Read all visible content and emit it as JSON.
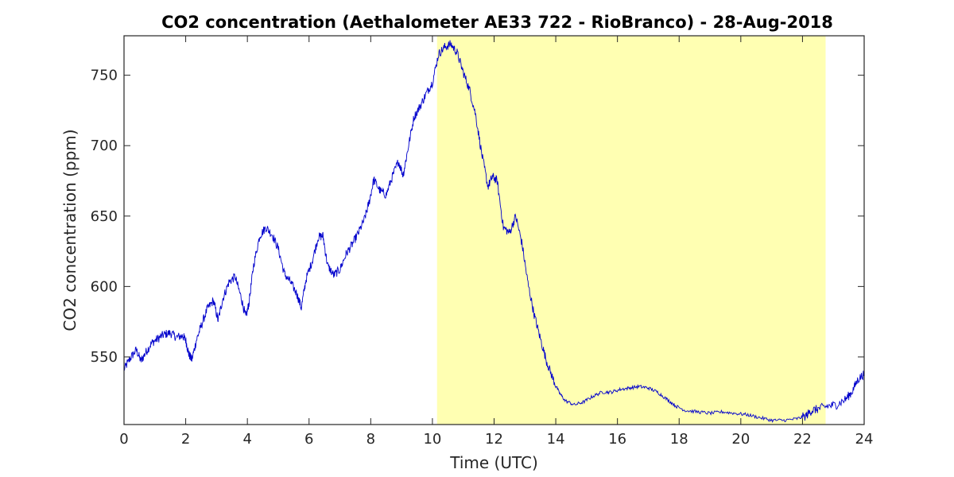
{
  "chart_data": {
    "type": "line",
    "title": "CO2 concentration (Aethalometer AE33 722 - RioBranco) - 28-Aug-2018",
    "xlabel": "Time (UTC)",
    "ylabel": "CO2 concentration (ppm)",
    "xlim": [
      0,
      24
    ],
    "ylim": [
      502,
      778
    ],
    "xticks": [
      0,
      2,
      4,
      6,
      8,
      10,
      12,
      14,
      16,
      18,
      20,
      22,
      24
    ],
    "yticks": [
      550,
      600,
      650,
      700,
      750
    ],
    "grid": false,
    "line_color": "#0000cc",
    "highlight": {
      "x_start": 10.15,
      "x_end": 22.75,
      "color": "#ffffb2"
    },
    "series": [
      {
        "x": [
          0,
          0.2,
          0.4,
          0.55,
          0.7,
          0.9,
          1.1,
          1.3,
          1.5,
          1.7,
          1.9,
          2.0,
          2.1,
          2.2,
          2.35,
          2.5,
          2.7,
          2.9,
          3.05,
          3.2,
          3.4,
          3.6,
          3.8,
          3.95,
          4.05,
          4.2,
          4.4,
          4.6,
          4.8,
          5.0,
          5.2,
          5.4,
          5.6,
          5.75,
          5.9,
          6.1,
          6.3,
          6.45,
          6.6,
          6.8,
          7.0,
          7.2,
          7.4,
          7.6,
          7.8,
          7.95,
          8.1,
          8.3,
          8.5,
          8.7,
          8.9,
          9.05,
          9.2,
          9.4,
          9.6,
          9.8,
          10.0,
          10.2,
          10.4,
          10.6,
          10.8,
          11.0,
          11.2,
          11.4,
          11.6,
          11.8,
          11.95,
          12.1,
          12.3,
          12.5,
          12.7,
          12.9,
          13.1,
          13.3,
          13.5,
          13.7,
          13.9,
          14.1,
          14.3,
          14.6,
          14.9,
          15.2,
          15.5,
          15.8,
          16.1,
          16.4,
          16.7,
          17.0,
          17.3,
          17.6,
          17.9,
          18.2,
          18.6,
          19.0,
          19.4,
          19.8,
          20.2,
          20.6,
          21.0,
          21.4,
          21.8,
          22.1,
          22.3,
          22.5,
          22.8,
          23.1,
          23.4,
          23.6,
          23.8,
          24.0
        ],
        "values": [
          541,
          549,
          555,
          547,
          553,
          560,
          563,
          566,
          567,
          564,
          565,
          562,
          552,
          548,
          562,
          572,
          584,
          590,
          576,
          591,
          603,
          607,
          592,
          578,
          588,
          615,
          636,
          642,
          637,
          627,
          609,
          603,
          595,
          585,
          605,
          618,
          635,
          636,
          615,
          608,
          612,
          623,
          630,
          638,
          648,
          660,
          676,
          668,
          665,
          678,
          689,
          679,
          697,
          720,
          728,
          737,
          745,
          765,
          770,
          772,
          766,
          752,
          740,
          722,
          694,
          671,
          678,
          675,
          642,
          638,
          650,
          631,
          602,
          580,
          563,
          547,
          535,
          525,
          519,
          516,
          518,
          522,
          525,
          525,
          527,
          528,
          529,
          528,
          525,
          520,
          515,
          512,
          511,
          510,
          511,
          510,
          509,
          507,
          505,
          505,
          506,
          508,
          512,
          513,
          515,
          516,
          520,
          525,
          534,
          538
        ]
      }
    ]
  }
}
